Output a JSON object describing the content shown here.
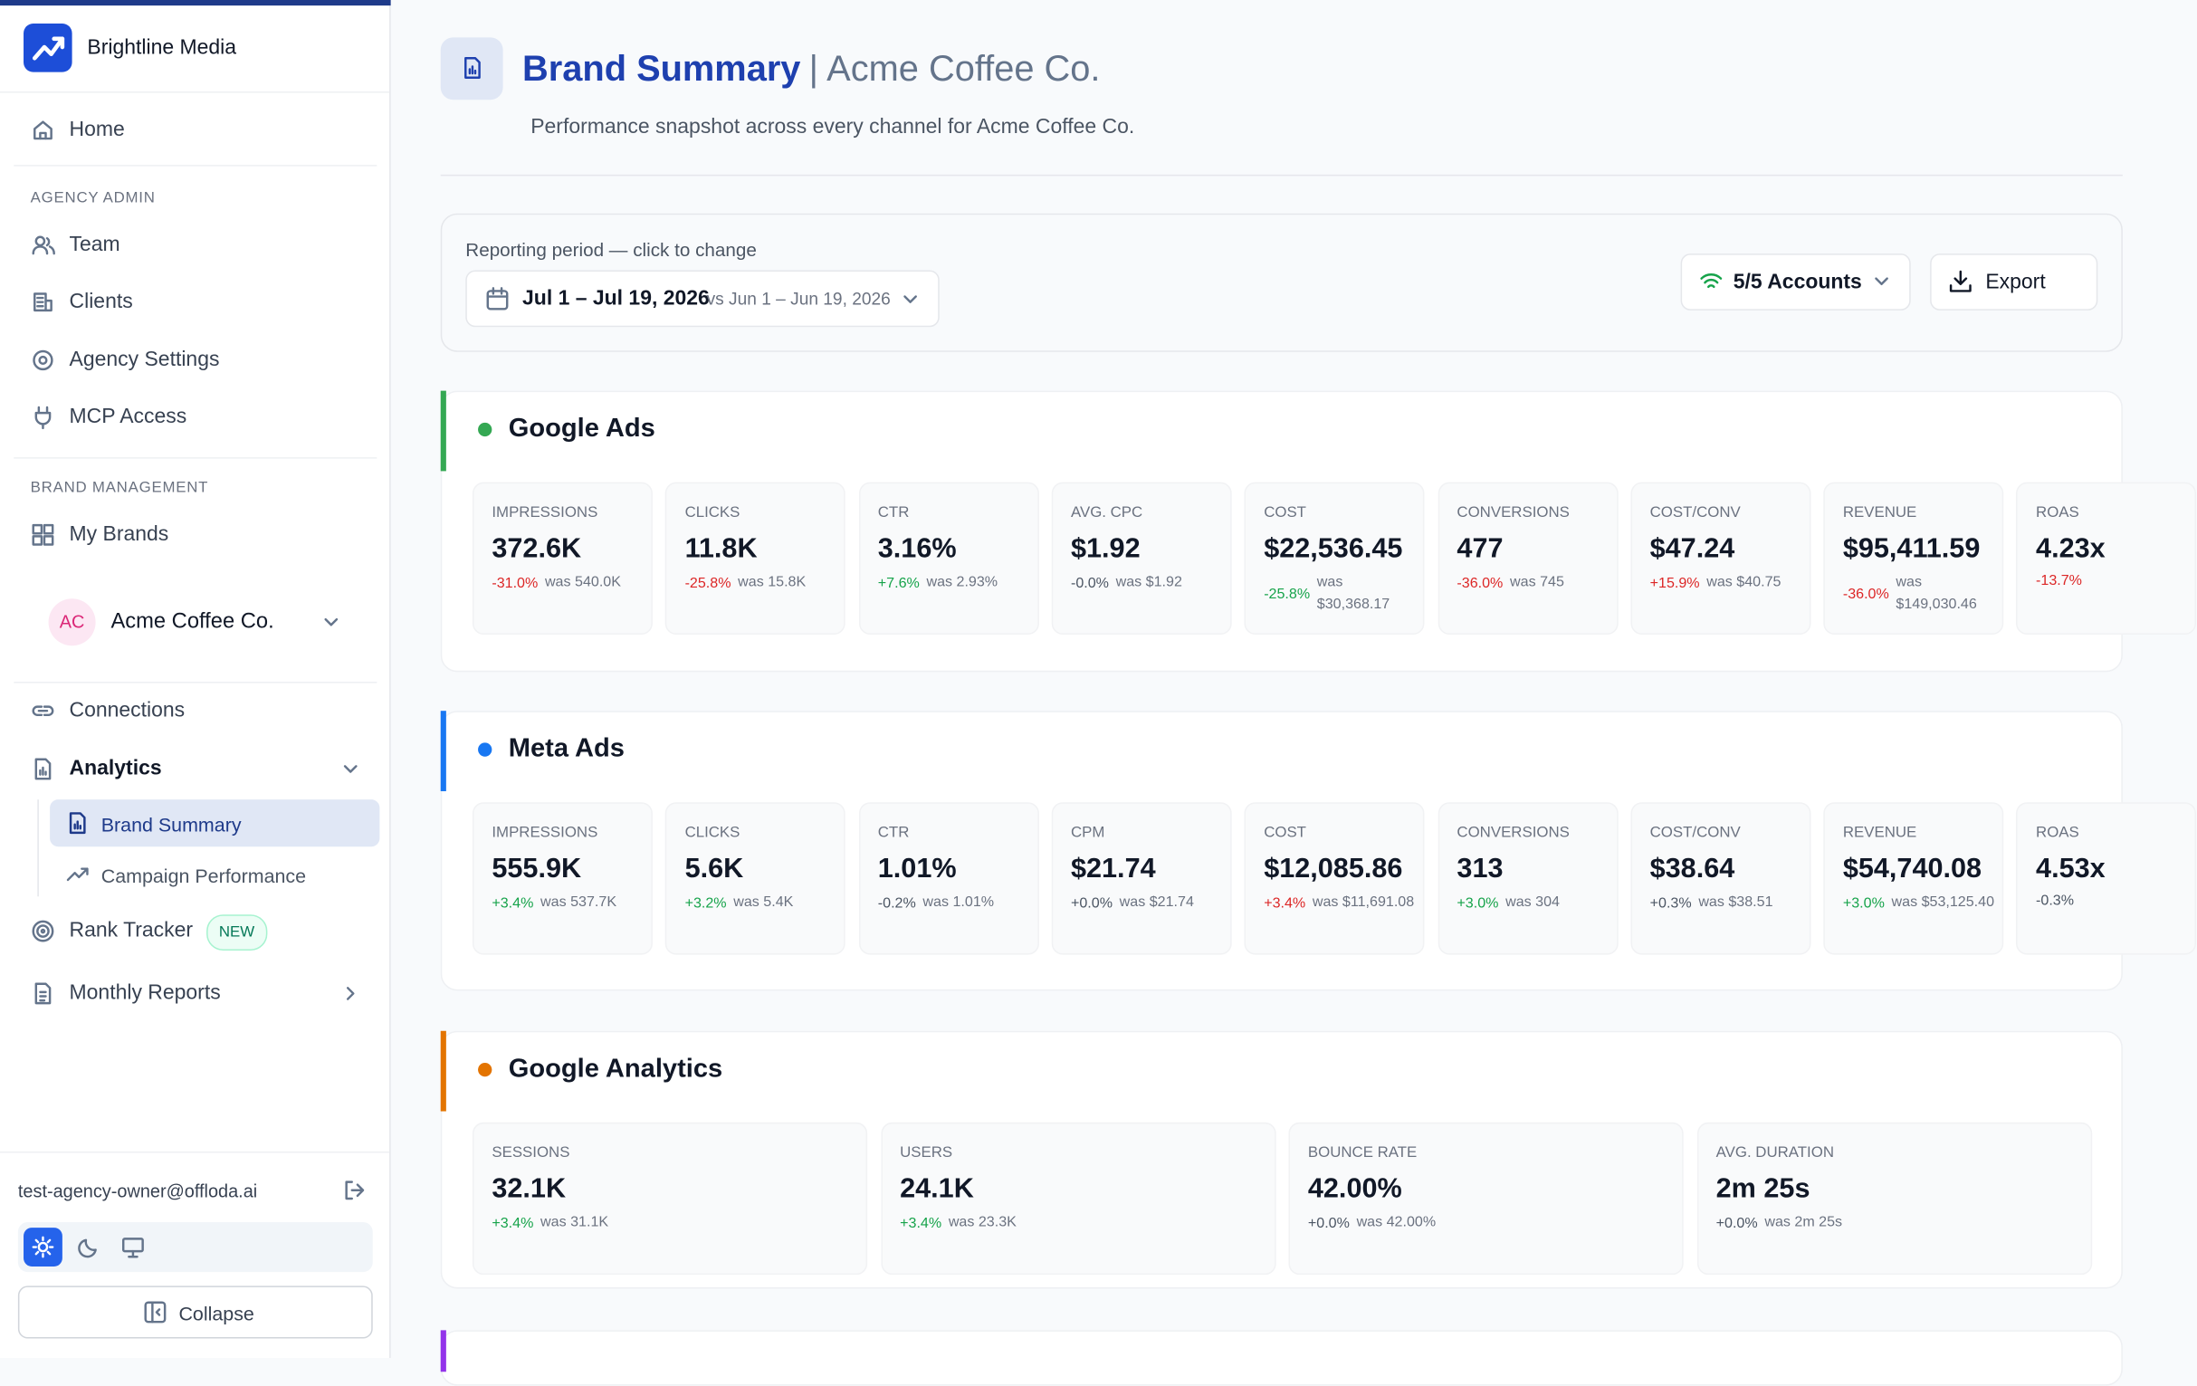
{
  "sidebar": {
    "org": "Brightline Media",
    "home": "Home",
    "admin_heading": "AGENCY ADMIN",
    "admin_items": [
      "Team",
      "Clients",
      "Agency Settings",
      "MCP Access"
    ],
    "brand_heading": "BRAND MANAGEMENT",
    "my_brands": "My Brands",
    "brand_initials": "AC",
    "brand_name": "Acme Coffee Co.",
    "connections": "Connections",
    "analytics": "Analytics",
    "analytics_sub": [
      "Brand Summary",
      "Campaign Performance"
    ],
    "rank_tracker": "Rank Tracker",
    "new_badge": "NEW",
    "monthly_reports": "Monthly Reports",
    "user_email": "test-agency-owner@offloda.ai",
    "collapse": "Collapse"
  },
  "header": {
    "title": "Brand Summary",
    "separator": "|",
    "brand": "Acme Coffee Co.",
    "subtitle": "Performance snapshot across every channel for Acme Coffee Co."
  },
  "period": {
    "label": "Reporting period — click to change",
    "range": "Jul 1 – Jul 19, 2026",
    "compare": "vs Jun 1 – Jun 19, 2026",
    "accounts": "5/5 Accounts",
    "export": "Export"
  },
  "sections": [
    {
      "name": "Google Ads",
      "color": "#34a853",
      "metrics": [
        {
          "label": "IMPRESSIONS",
          "value": "372.6K",
          "change": "-31.0%",
          "was": "was 540.0K",
          "trend": "bad"
        },
        {
          "label": "CLICKS",
          "value": "11.8K",
          "change": "-25.8%",
          "was": "was 15.8K",
          "trend": "bad"
        },
        {
          "label": "CTR",
          "value": "3.16%",
          "change": "+7.6%",
          "was": "was 2.93%",
          "trend": "good"
        },
        {
          "label": "AVG. CPC",
          "value": "$1.92",
          "change": "-0.0%",
          "was": "was $1.92",
          "trend": "neutral"
        },
        {
          "label": "COST",
          "value": "$22,536.45",
          "change": "-25.8%",
          "was": "was $30,368.17",
          "trend": "good"
        },
        {
          "label": "CONVERSIONS",
          "value": "477",
          "change": "-36.0%",
          "was": "was 745",
          "trend": "bad"
        },
        {
          "label": "COST/CONV",
          "value": "$47.24",
          "change": "+15.9%",
          "was": "was $40.75",
          "trend": "bad"
        },
        {
          "label": "REVENUE",
          "value": "$95,411.59",
          "change": "-36.0%",
          "was": "was $149,030.46",
          "trend": "bad"
        },
        {
          "label": "ROAS",
          "value": "4.23x",
          "change": "-13.7%",
          "trend": "bad"
        }
      ]
    },
    {
      "name": "Meta Ads",
      "color": "#1877f2",
      "metrics": [
        {
          "label": "IMPRESSIONS",
          "value": "555.9K",
          "change": "+3.4%",
          "was": "was 537.7K",
          "trend": "good"
        },
        {
          "label": "CLICKS",
          "value": "5.6K",
          "change": "+3.2%",
          "was": "was 5.4K",
          "trend": "good"
        },
        {
          "label": "CTR",
          "value": "1.01%",
          "change": "-0.2%",
          "was": "was 1.01%",
          "trend": "neutral"
        },
        {
          "label": "CPM",
          "value": "$21.74",
          "change": "+0.0%",
          "was": "was $21.74",
          "trend": "neutral"
        },
        {
          "label": "COST",
          "value": "$12,085.86",
          "change": "+3.4%",
          "was": "was $11,691.08",
          "trend": "bad"
        },
        {
          "label": "CONVERSIONS",
          "value": "313",
          "change": "+3.0%",
          "was": "was 304",
          "trend": "good"
        },
        {
          "label": "COST/CONV",
          "value": "$38.64",
          "change": "+0.3%",
          "was": "was $38.51",
          "trend": "neutral"
        },
        {
          "label": "REVENUE",
          "value": "$54,740.08",
          "change": "+3.0%",
          "was": "was $53,125.40",
          "trend": "good"
        },
        {
          "label": "ROAS",
          "value": "4.53x",
          "change": "-0.3%",
          "trend": "neutral"
        }
      ]
    },
    {
      "name": "Google Analytics",
      "color": "#e37400",
      "metrics": [
        {
          "label": "SESSIONS",
          "value": "32.1K",
          "change": "+3.4%",
          "was": "was 31.1K",
          "trend": "good"
        },
        {
          "label": "USERS",
          "value": "24.1K",
          "change": "+3.4%",
          "was": "was 23.3K",
          "trend": "good"
        },
        {
          "label": "BOUNCE RATE",
          "value": "42.00%",
          "change": "+0.0%",
          "was": "was 42.00%",
          "trend": "neutral"
        },
        {
          "label": "AVG. DURATION",
          "value": "2m 25s",
          "change": "+0.0%",
          "was": "was 2m 25s",
          "trend": "neutral"
        }
      ]
    }
  ]
}
